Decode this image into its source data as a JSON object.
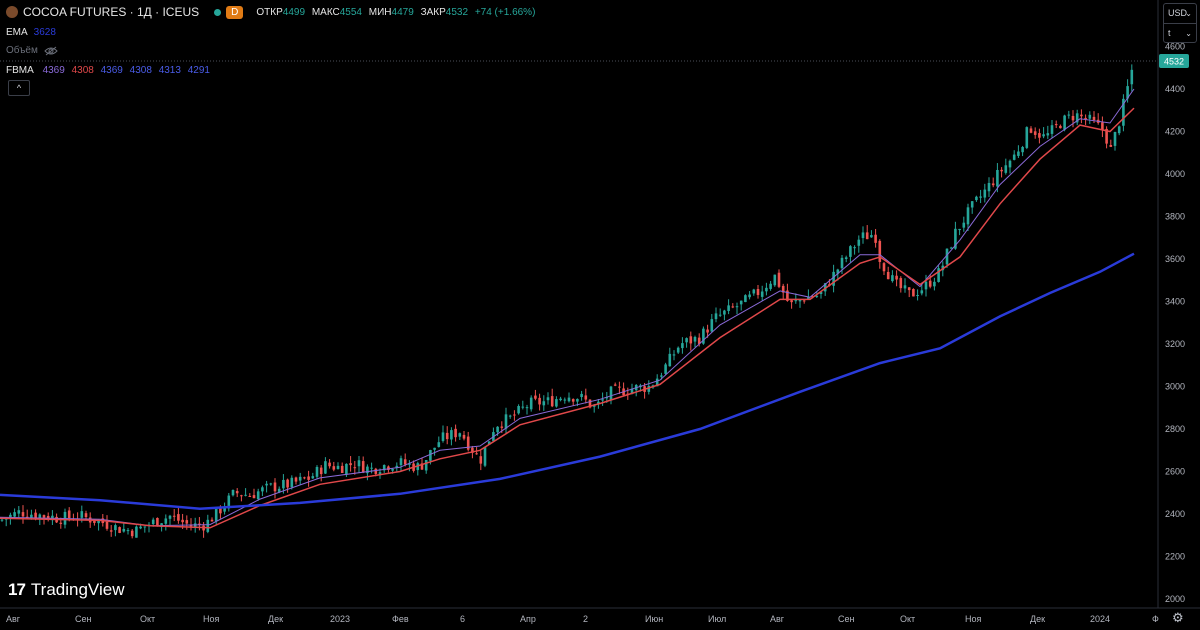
{
  "header": {
    "symbol_title": "COCOA FUTURES · 1Д · ICEUS",
    "interval_badge": "D",
    "ohlc": [
      {
        "label": "ОТКР",
        "value": "4499"
      },
      {
        "label": "МАКС",
        "value": "4554"
      },
      {
        "label": "МИН",
        "value": "4479"
      },
      {
        "label": "ЗАКР",
        "value": "4532"
      }
    ],
    "change": "+74 (+1.66%)"
  },
  "indicators": {
    "ema": {
      "label": "EMA",
      "value": "3628"
    },
    "volume": {
      "label": "Объём"
    },
    "fbma": {
      "label": "FBMA",
      "values": [
        "4369",
        "4308",
        "4369",
        "4308",
        "4313",
        "4291"
      ]
    }
  },
  "controls": {
    "currency": "USD",
    "unit": "t",
    "collapse": "^"
  },
  "branding": {
    "name": "TradingView"
  },
  "colors": {
    "up": "#26a69a",
    "down": "#ef5350",
    "ema": "#2a3bd9",
    "fbma_fast": "#8a6ad8",
    "fbma_slow": "#e0484a",
    "price_tag": "#26a69a"
  },
  "chart_data": {
    "type": "candlestick",
    "title": "COCOA FUTURES · 1Д · ICEUS",
    "x_ticks": [
      "Авг",
      "Сен",
      "Окт",
      "Ноя",
      "Дек",
      "2023",
      "Фев",
      "6",
      "Апр",
      "2",
      "Июн",
      "Июл",
      "Авг",
      "Сен",
      "Окт",
      "Ноя",
      "Дек",
      "2024",
      "Ф"
    ],
    "y_ticks": [
      2000,
      2200,
      2400,
      2600,
      2800,
      3000,
      3200,
      3400,
      3600,
      3800,
      4000,
      4200,
      4400,
      4600
    ],
    "ylim": [
      1980,
      4640
    ],
    "last_price": 4532,
    "close_path": [
      [
        0,
        2370
      ],
      [
        20,
        2410
      ],
      [
        40,
        2395
      ],
      [
        60,
        2380
      ],
      [
        80,
        2390
      ],
      [
        100,
        2365
      ],
      [
        120,
        2330
      ],
      [
        135,
        2320
      ],
      [
        150,
        2355
      ],
      [
        170,
        2390
      ],
      [
        190,
        2345
      ],
      [
        205,
        2350
      ],
      [
        220,
        2420
      ],
      [
        235,
        2500
      ],
      [
        250,
        2490
      ],
      [
        270,
        2525
      ],
      [
        290,
        2540
      ],
      [
        310,
        2570
      ],
      [
        325,
        2630
      ],
      [
        340,
        2620
      ],
      [
        355,
        2640
      ],
      [
        370,
        2610
      ],
      [
        385,
        2630
      ],
      [
        400,
        2640
      ],
      [
        420,
        2620
      ],
      [
        440,
        2750
      ],
      [
        460,
        2790
      ],
      [
        480,
        2650
      ],
      [
        495,
        2820
      ],
      [
        510,
        2850
      ],
      [
        530,
        2920
      ],
      [
        550,
        2930
      ],
      [
        565,
        2960
      ],
      [
        580,
        2950
      ],
      [
        595,
        2900
      ],
      [
        610,
        2970
      ],
      [
        630,
        2990
      ],
      [
        650,
        3000
      ],
      [
        665,
        3090
      ],
      [
        680,
        3200
      ],
      [
        700,
        3230
      ],
      [
        715,
        3320
      ],
      [
        730,
        3360
      ],
      [
        745,
        3400
      ],
      [
        760,
        3450
      ],
      [
        775,
        3520
      ],
      [
        790,
        3380
      ],
      [
        805,
        3420
      ],
      [
        820,
        3430
      ],
      [
        840,
        3570
      ],
      [
        860,
        3700
      ],
      [
        875,
        3720
      ],
      [
        880,
        3600
      ],
      [
        895,
        3480
      ],
      [
        910,
        3430
      ],
      [
        925,
        3470
      ],
      [
        940,
        3540
      ],
      [
        955,
        3720
      ],
      [
        970,
        3830
      ],
      [
        985,
        3920
      ],
      [
        1000,
        4010
      ],
      [
        1015,
        4090
      ],
      [
        1030,
        4220
      ],
      [
        1045,
        4170
      ],
      [
        1060,
        4240
      ],
      [
        1075,
        4280
      ],
      [
        1090,
        4250
      ],
      [
        1105,
        4200
      ],
      [
        1110,
        4100
      ],
      [
        1120,
        4260
      ],
      [
        1130,
        4450
      ],
      [
        1134,
        4532
      ]
    ],
    "ema_path": [
      [
        0,
        2490
      ],
      [
        100,
        2465
      ],
      [
        200,
        2425
      ],
      [
        300,
        2452
      ],
      [
        400,
        2495
      ],
      [
        500,
        2565
      ],
      [
        600,
        2670
      ],
      [
        700,
        2800
      ],
      [
        800,
        2975
      ],
      [
        880,
        3110
      ],
      [
        940,
        3180
      ],
      [
        1000,
        3330
      ],
      [
        1050,
        3440
      ],
      [
        1100,
        3540
      ],
      [
        1134,
        3625
      ]
    ],
    "fbma_fast_path": [
      [
        0,
        2385
      ],
      [
        100,
        2375
      ],
      [
        150,
        2345
      ],
      [
        210,
        2350
      ],
      [
        260,
        2470
      ],
      [
        320,
        2570
      ],
      [
        400,
        2620
      ],
      [
        440,
        2700
      ],
      [
        480,
        2720
      ],
      [
        520,
        2850
      ],
      [
        600,
        2940
      ],
      [
        660,
        3030
      ],
      [
        720,
        3290
      ],
      [
        780,
        3450
      ],
      [
        810,
        3420
      ],
      [
        860,
        3620
      ],
      [
        880,
        3620
      ],
      [
        920,
        3470
      ],
      [
        960,
        3690
      ],
      [
        1000,
        3950
      ],
      [
        1040,
        4130
      ],
      [
        1080,
        4260
      ],
      [
        1110,
        4240
      ],
      [
        1134,
        4400
      ]
    ],
    "fbma_slow_path": [
      [
        0,
        2380
      ],
      [
        100,
        2370
      ],
      [
        150,
        2345
      ],
      [
        210,
        2335
      ],
      [
        260,
        2440
      ],
      [
        320,
        2540
      ],
      [
        400,
        2600
      ],
      [
        440,
        2660
      ],
      [
        480,
        2700
      ],
      [
        520,
        2820
      ],
      [
        600,
        2920
      ],
      [
        660,
        3010
      ],
      [
        720,
        3230
      ],
      [
        780,
        3410
      ],
      [
        810,
        3410
      ],
      [
        860,
        3580
      ],
      [
        880,
        3610
      ],
      [
        920,
        3480
      ],
      [
        960,
        3610
      ],
      [
        1000,
        3860
      ],
      [
        1040,
        4070
      ],
      [
        1080,
        4230
      ],
      [
        1110,
        4200
      ],
      [
        1134,
        4310
      ]
    ]
  }
}
